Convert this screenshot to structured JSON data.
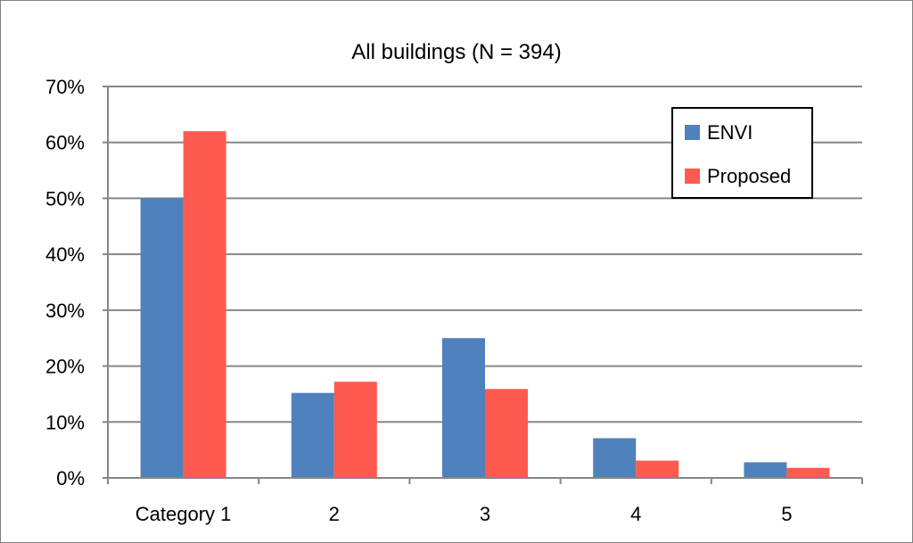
{
  "chart_data": {
    "type": "bar",
    "title": "All buildings (N = 394)",
    "categories": [
      "Category 1",
      "2",
      "3",
      "4",
      "5"
    ],
    "series": [
      {
        "name": "ENVI",
        "color": "#4F81BD",
        "values": [
          50,
          15.2,
          25,
          7.1,
          2.8
        ]
      },
      {
        "name": "Proposed",
        "color": "#FF5A4F",
        "values": [
          62,
          17.2,
          15.9,
          3.1,
          1.8
        ]
      }
    ],
    "y_ticks": [
      "0%",
      "10%",
      "20%",
      "30%",
      "40%",
      "50%",
      "60%",
      "70%"
    ],
    "ylim": [
      0,
      70
    ],
    "y_unit": "%",
    "grid": true,
    "legend_position": "top-right",
    "xlabel": "",
    "ylabel": ""
  }
}
